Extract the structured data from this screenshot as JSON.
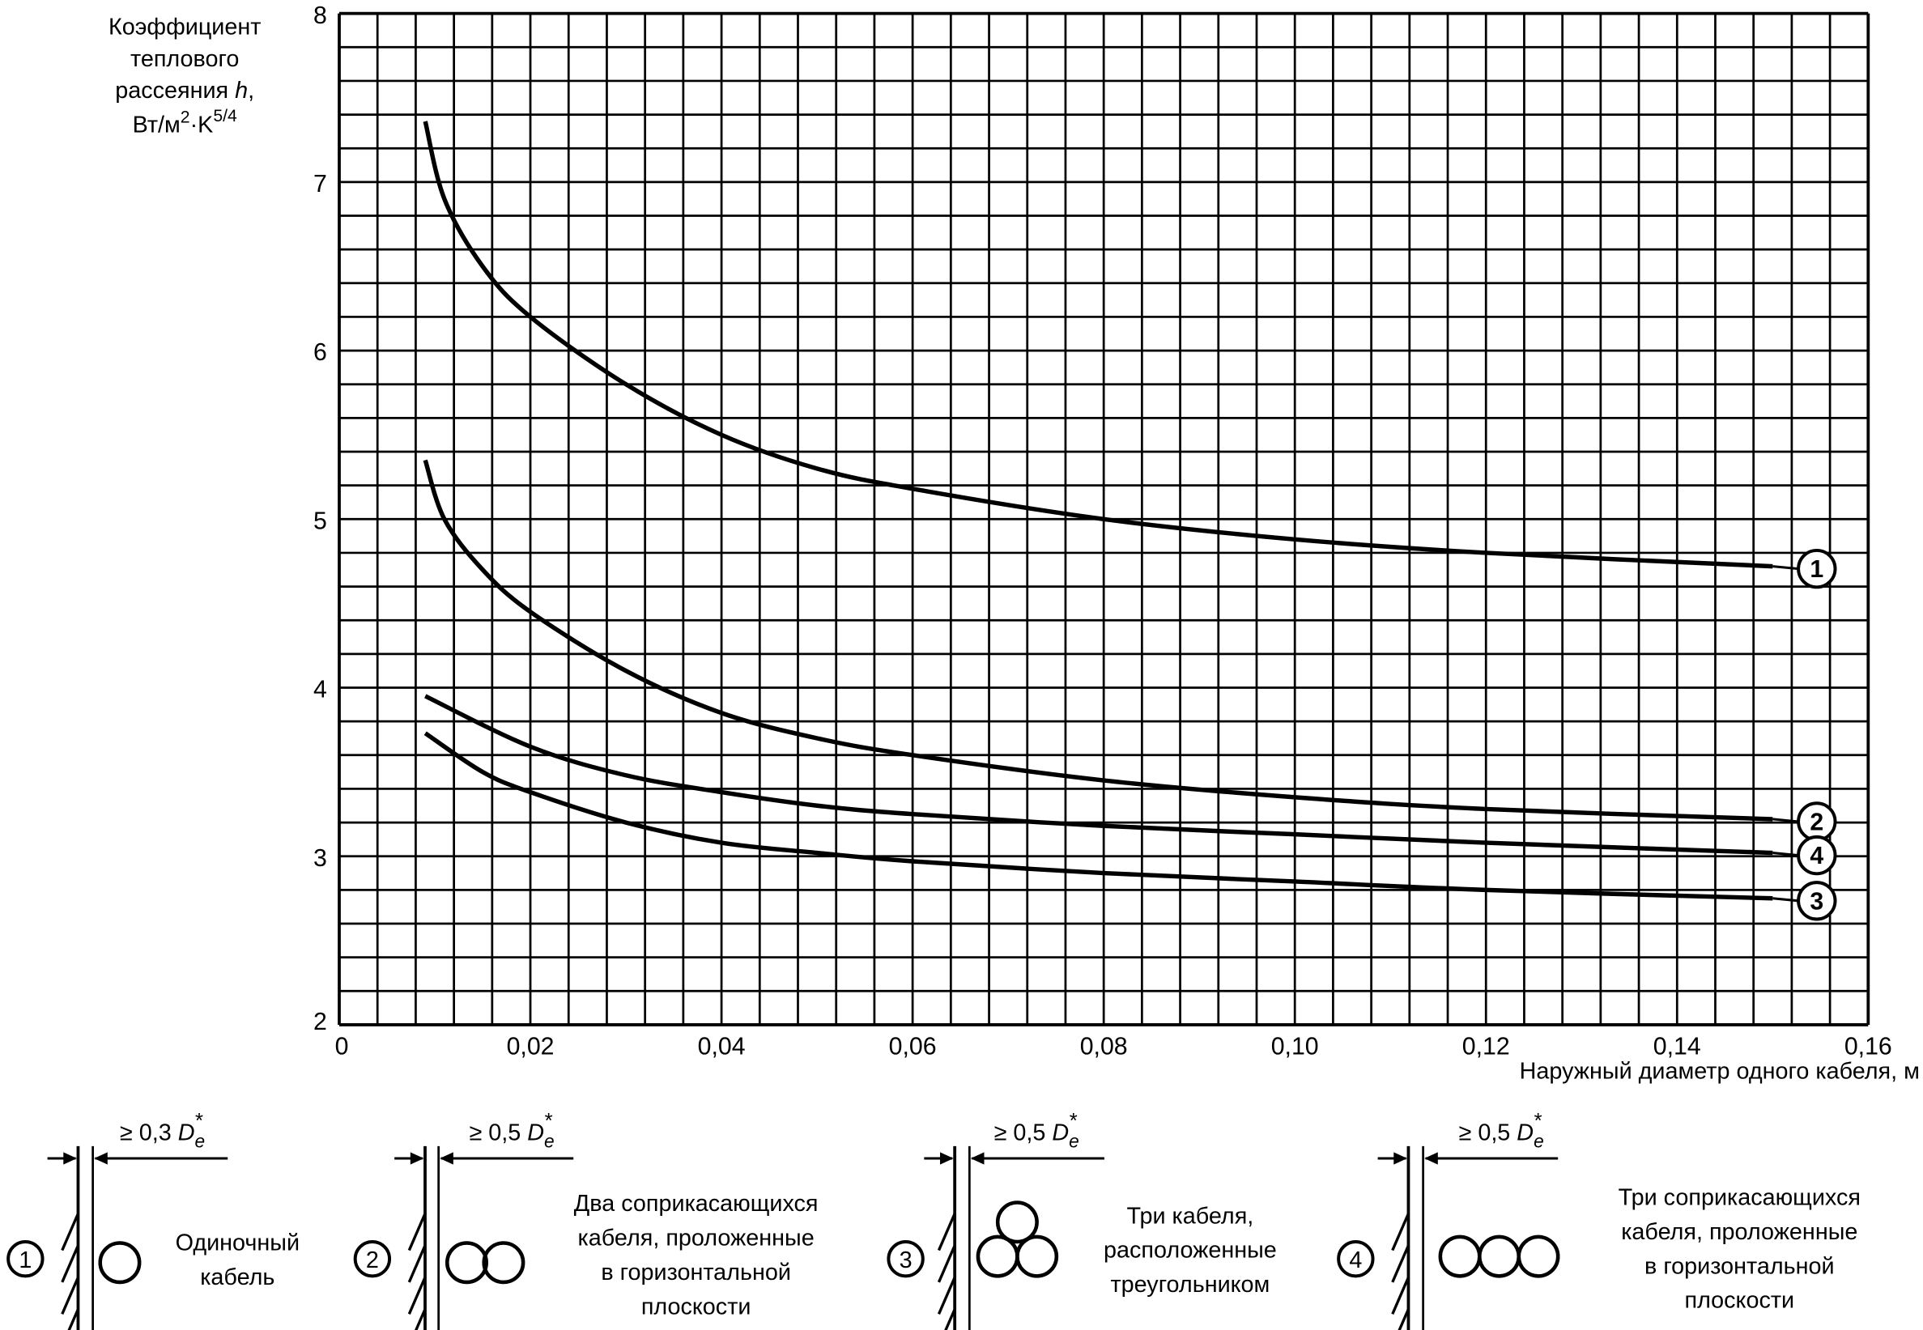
{
  "chart_data": {
    "type": "line",
    "ylabel_lines": [
      "Коэффициент",
      "теплового",
      "рассеяния h,",
      "Вт/м2·K5/4"
    ],
    "ylabel_parts": {
      "l1": "Коэффициент",
      "l2": "теплового",
      "l3a": "рассеяния ",
      "l3b": "h",
      "l3c": ",",
      "l4a": "Вт/м",
      "l4b": "2",
      "l4c": "·K",
      "l4d": "5/4"
    },
    "xlabel": "Наружный диаметр одного кабеля, м",
    "xlim": [
      0,
      0.16
    ],
    "ylim": [
      2,
      8
    ],
    "x_ticks": [
      "0",
      "0,02",
      "0,04",
      "0,06",
      "0,08",
      "0,10",
      "0,12",
      "0,14",
      "0,16"
    ],
    "y_ticks": [
      "2",
      "3",
      "4",
      "5",
      "6",
      "7",
      "8"
    ],
    "grid": true,
    "grid_step_x": 0.004,
    "grid_step_y": 0.2,
    "series": [
      {
        "name": "1",
        "x": [
          0.009,
          0.011,
          0.015,
          0.02,
          0.03,
          0.04,
          0.05,
          0.06,
          0.08,
          0.1,
          0.12,
          0.15
        ],
        "y": [
          7.36,
          6.9,
          6.5,
          6.2,
          5.8,
          5.5,
          5.3,
          5.18,
          5.0,
          4.88,
          4.8,
          4.72
        ]
      },
      {
        "name": "2",
        "x": [
          0.009,
          0.011,
          0.015,
          0.02,
          0.03,
          0.04,
          0.05,
          0.06,
          0.08,
          0.1,
          0.12,
          0.15
        ],
        "y": [
          5.35,
          5.0,
          4.7,
          4.45,
          4.1,
          3.85,
          3.7,
          3.6,
          3.45,
          3.35,
          3.28,
          3.22
        ]
      },
      {
        "name": "4",
        "x": [
          0.009,
          0.02,
          0.03,
          0.04,
          0.05,
          0.06,
          0.08,
          0.1,
          0.12,
          0.15
        ],
        "y": [
          3.95,
          3.65,
          3.48,
          3.38,
          3.3,
          3.25,
          3.18,
          3.13,
          3.08,
          3.02
        ]
      },
      {
        "name": "3",
        "x": [
          0.009,
          0.015,
          0.02,
          0.03,
          0.04,
          0.05,
          0.06,
          0.08,
          0.1,
          0.12,
          0.15
        ],
        "y": [
          3.73,
          3.5,
          3.38,
          3.2,
          3.08,
          3.02,
          2.97,
          2.9,
          2.85,
          2.8,
          2.75
        ]
      }
    ]
  },
  "legend": [
    {
      "num": "1",
      "gap_prefix": "≥ 0,3 ",
      "gap_d": "D",
      "gap_sub": "e",
      "gap_star": "*",
      "text": [
        "Одиночный",
        "кабель"
      ]
    },
    {
      "num": "2",
      "gap_prefix": "≥ 0,5 ",
      "gap_d": "D",
      "gap_sub": "e",
      "gap_star": "*",
      "text": [
        "Два соприкасающихся",
        "кабеля, проложенные",
        "в горизонтальной",
        "плоскости"
      ]
    },
    {
      "num": "3",
      "gap_prefix": "≥ 0,5 ",
      "gap_d": "D",
      "gap_sub": "e",
      "gap_star": "*",
      "text": [
        "Три кабеля,",
        "расположенные",
        "треугольником"
      ]
    },
    {
      "num": "4",
      "gap_prefix": "≥ 0,5 ",
      "gap_d": "D",
      "gap_sub": "e",
      "gap_star": "*",
      "text": [
        "Три соприкасающихся",
        "кабеля, проложенные",
        "в горизонтальной",
        "плоскости"
      ]
    }
  ]
}
